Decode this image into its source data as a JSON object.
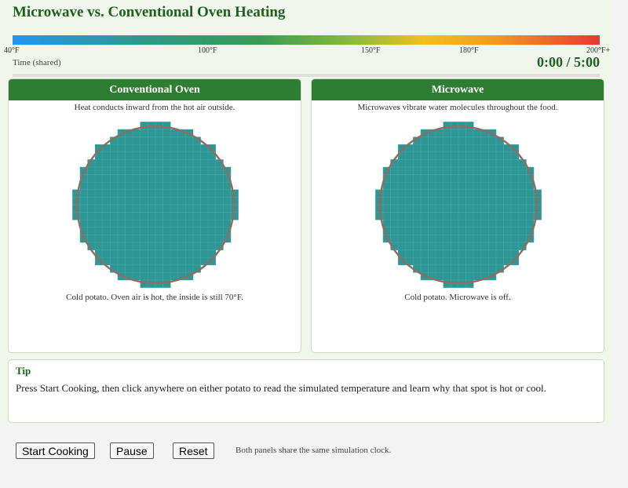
{
  "header": {
    "title": "Microwave vs. Conventional Oven Heating"
  },
  "scale": {
    "labels": [
      "40°F",
      "100°F",
      "150°F",
      "180°F",
      "200°F+"
    ]
  },
  "clock": {
    "label": "Time (shared)",
    "time": "0:00 / 5:00"
  },
  "panels": [
    {
      "title": "Conventional Oven",
      "description": "Heat conducts inward from the hot air outside.",
      "status": "Cold potato. Oven air is hot, the inside is still 70°F."
    },
    {
      "title": "Microwave",
      "description": "Microwaves vibrate water molecules throughout the food.",
      "status": "Cold potato. Microwave is off."
    }
  ],
  "tip": {
    "title": "Tip",
    "text": "Press Start Cooking, then click anywhere on either potato to read the simulated temperature and learn why that spot is hot or cool."
  },
  "toolbar": {
    "buttons": [
      "Start Cooking",
      "Pause",
      "Reset"
    ],
    "note": "Both panels share the same simulation clock."
  }
}
